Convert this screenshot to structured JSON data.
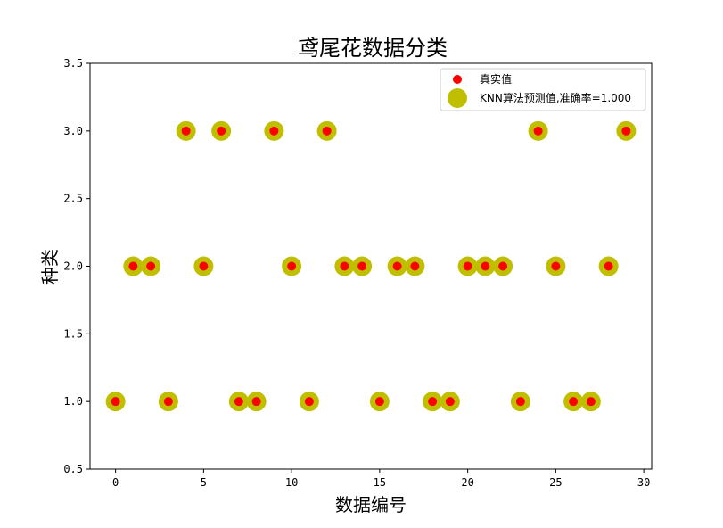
{
  "chart_data": {
    "type": "scatter",
    "title": "鸢尾花数据分类",
    "xlabel": "数据编号",
    "ylabel": "种类",
    "xlim": [
      -1.45,
      30.45
    ],
    "ylim": [
      0.5,
      3.5
    ],
    "xticks": [
      0,
      5,
      10,
      15,
      20,
      25,
      30
    ],
    "yticks": [
      0.5,
      1.0,
      1.5,
      2.0,
      2.5,
      3.0,
      3.5
    ],
    "xtick_labels": [
      "0",
      "5",
      "10",
      "15",
      "20",
      "25",
      "30"
    ],
    "ytick_labels": [
      "0.5",
      "1.0",
      "1.5",
      "2.0",
      "2.5",
      "3.0",
      "3.5"
    ],
    "legend_position": "top-right",
    "x": [
      0,
      1,
      2,
      3,
      4,
      5,
      6,
      7,
      8,
      9,
      10,
      11,
      12,
      13,
      14,
      15,
      16,
      17,
      18,
      19,
      20,
      21,
      22,
      23,
      24,
      25,
      26,
      27,
      28,
      29
    ],
    "series": [
      {
        "name": "真实值",
        "color": "#ff0000",
        "values": [
          1,
          2,
          2,
          1,
          3,
          2,
          3,
          1,
          1,
          3,
          2,
          1,
          3,
          2,
          2,
          1,
          2,
          2,
          1,
          1,
          2,
          2,
          2,
          1,
          3,
          2,
          1,
          1,
          2,
          3
        ]
      },
      {
        "name": "KNN算法预测值,准确率=1.000",
        "color": "#bfbf00",
        "values": [
          1,
          2,
          2,
          1,
          3,
          2,
          3,
          1,
          1,
          3,
          2,
          1,
          3,
          2,
          2,
          1,
          2,
          2,
          1,
          1,
          2,
          2,
          2,
          1,
          3,
          2,
          1,
          1,
          2,
          3
        ]
      }
    ]
  }
}
